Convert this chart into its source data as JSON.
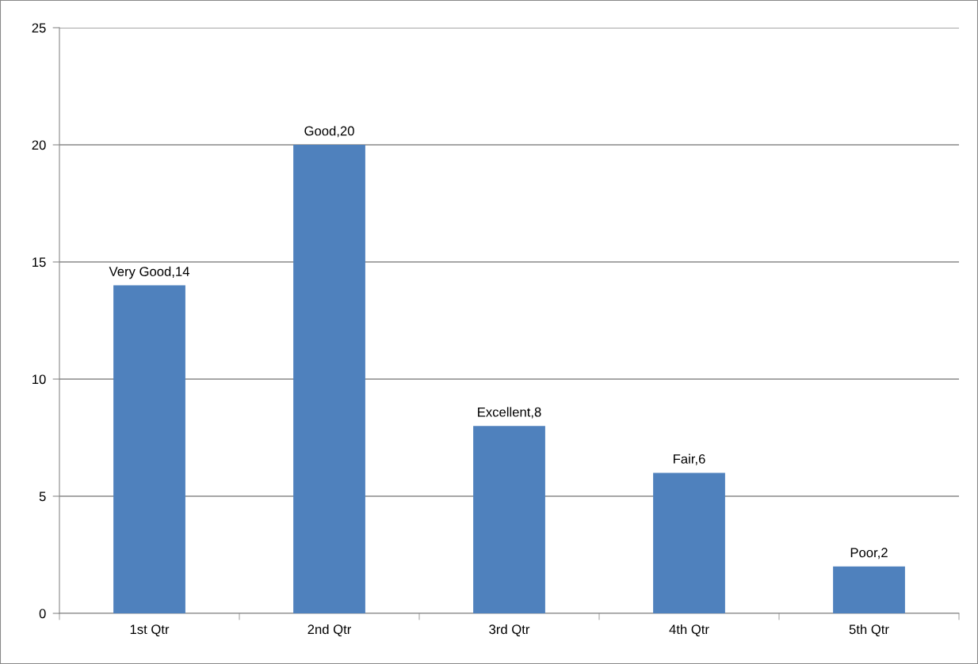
{
  "chart_data": {
    "type": "bar",
    "categories": [
      "1st Qtr",
      "2nd Qtr",
      "3rd Qtr",
      "4th Qtr",
      "5th Qtr"
    ],
    "values": [
      14,
      20,
      8,
      6,
      2
    ],
    "value_labels": [
      "Very Good,14",
      "Good,20",
      "Excellent,8",
      "Fair,6",
      "Poor,2"
    ],
    "color": "#4f81bd",
    "ylim": [
      0,
      25
    ],
    "yticks": [
      0,
      5,
      10,
      15,
      20,
      25
    ],
    "grid": "y",
    "legend": false
  }
}
